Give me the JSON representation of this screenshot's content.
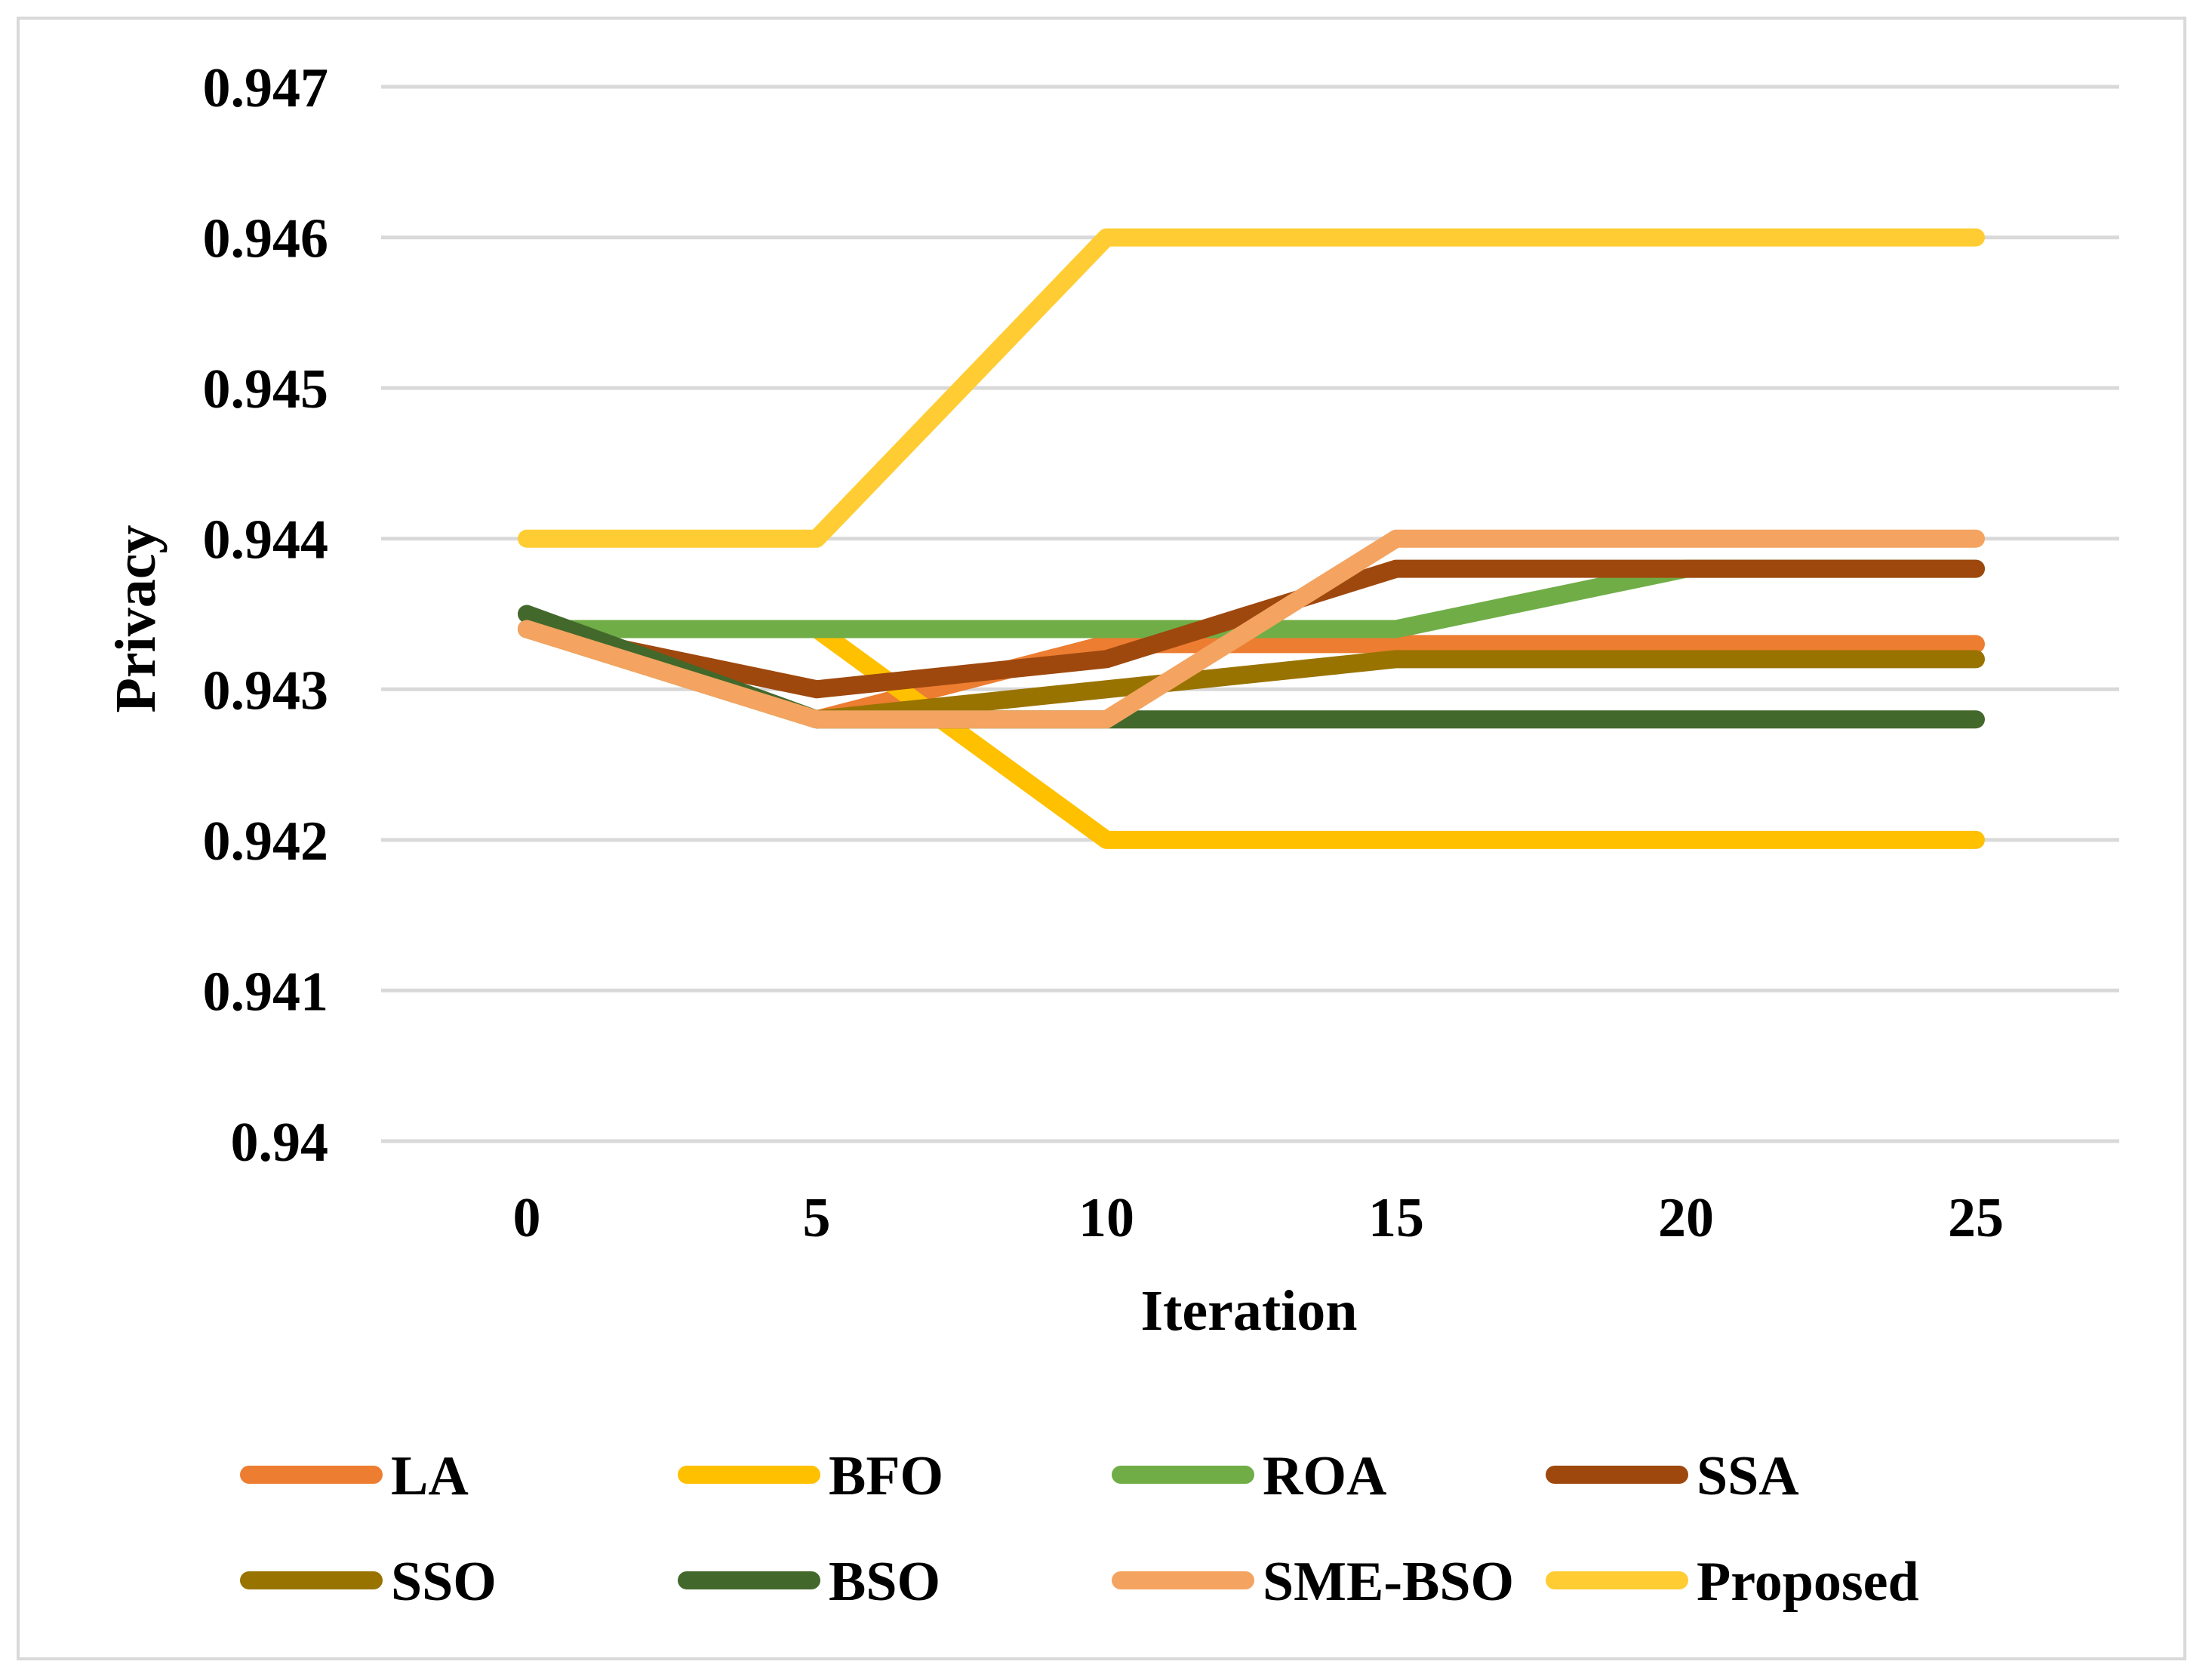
{
  "chart_data": {
    "type": "line",
    "title": "",
    "xlabel": "Iteration",
    "ylabel": "Privacy",
    "categories": [
      "0",
      "5",
      "10",
      "15",
      "20",
      "25"
    ],
    "ylim": [
      0.94,
      0.947
    ],
    "yticks": [
      "0.94",
      "0.941",
      "0.942",
      "0.943",
      "0.944",
      "0.945",
      "0.946",
      "0.947"
    ],
    "grid": true,
    "legend_position": "bottom",
    "series": [
      {
        "name": "LA",
        "color": "#ED7D31",
        "values": [
          0.9434,
          0.9428,
          0.9433,
          0.9433,
          0.9433,
          0.9433
        ]
      },
      {
        "name": "BFO",
        "color": "#FFC000",
        "values": [
          0.9434,
          0.9434,
          0.942,
          0.942,
          0.942,
          0.942
        ]
      },
      {
        "name": "ROA",
        "color": "#70AD47",
        "values": [
          0.9434,
          0.9434,
          0.9434,
          0.9434,
          0.9438,
          0.9438
        ]
      },
      {
        "name": "SSA",
        "color": "#9E480E",
        "values": [
          0.9434,
          0.943,
          0.9432,
          0.9438,
          0.9438,
          0.9438
        ]
      },
      {
        "name": "SSO",
        "color": "#997300",
        "values": [
          0.9434,
          0.9428,
          0.943,
          0.9432,
          0.9432,
          0.9432
        ]
      },
      {
        "name": "BSO",
        "color": "#43682B",
        "values": [
          0.9435,
          0.9428,
          0.9428,
          0.9428,
          0.9428,
          0.9428
        ]
      },
      {
        "name": "SME-BSO",
        "color": "#F4A460",
        "values": [
          0.9434,
          0.9428,
          0.9428,
          0.944,
          0.944,
          0.944
        ]
      },
      {
        "name": "Proposed",
        "color": "#FFCD33",
        "values": [
          0.944,
          0.944,
          0.946,
          0.946,
          0.946,
          0.946
        ]
      }
    ]
  }
}
